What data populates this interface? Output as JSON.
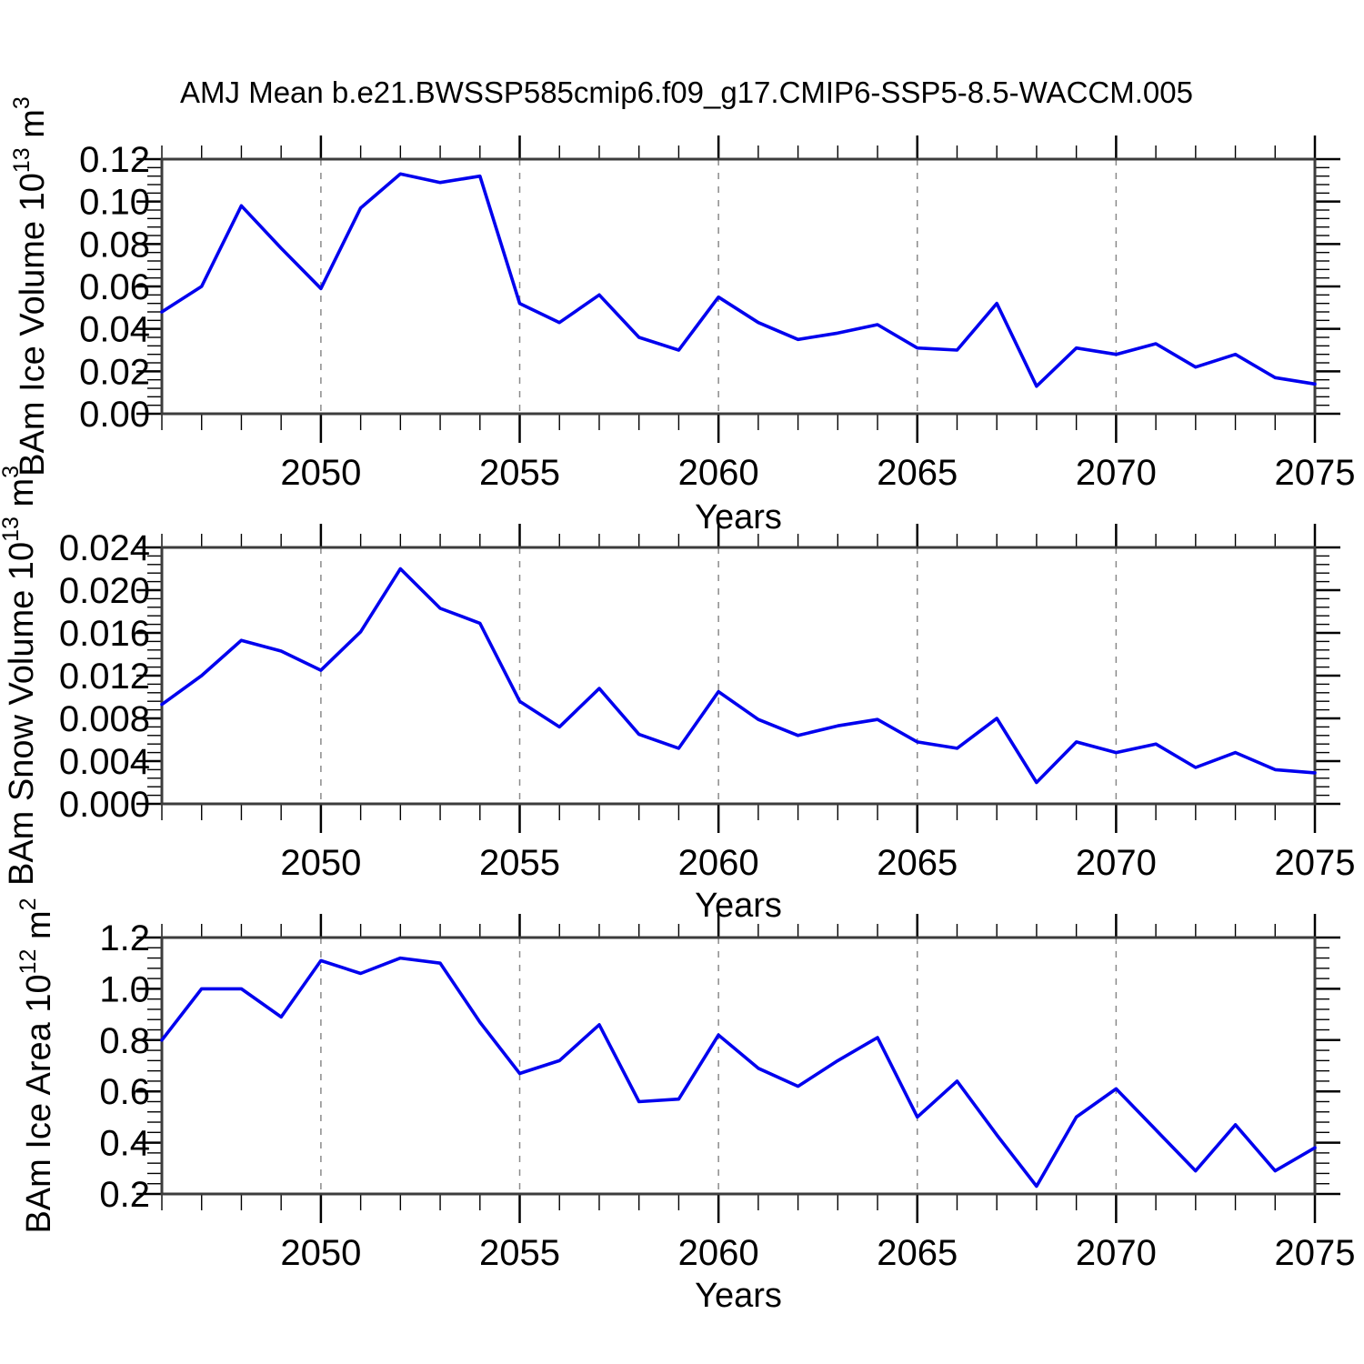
{
  "title": "AMJ Mean b.e21.BWSSP585cmip6.f09_g17.CMIP6-SSP5-8.5-WACCM.005",
  "colors": {
    "line": "#0000ee",
    "frame": "#3c3c3c",
    "tick": "#000000",
    "grid": "#8a8a8a",
    "text": "#000000",
    "background": "#ffffff"
  },
  "chart_data": [
    {
      "type": "line",
      "name": "bam-ice-volume",
      "ylabel_parts": {
        "prefix": "BAm Ice Volume 10",
        "exp": "13",
        "unit": " m",
        "unit_exp": "3"
      },
      "xlabel": "Years",
      "x": [
        2046,
        2047,
        2048,
        2049,
        2050,
        2051,
        2052,
        2053,
        2054,
        2055,
        2056,
        2057,
        2058,
        2059,
        2060,
        2061,
        2062,
        2063,
        2064,
        2065,
        2066,
        2067,
        2068,
        2069,
        2070,
        2071,
        2072,
        2073,
        2074,
        2075
      ],
      "values": [
        0.048,
        0.06,
        0.098,
        0.078,
        0.059,
        0.097,
        0.113,
        0.109,
        0.112,
        0.052,
        0.043,
        0.056,
        0.036,
        0.03,
        0.055,
        0.043,
        0.035,
        0.038,
        0.042,
        0.031,
        0.03,
        0.052,
        0.013,
        0.031,
        0.028,
        0.033,
        0.022,
        0.028,
        0.017,
        0.014
      ],
      "xlim": [
        2046,
        2075
      ],
      "ylim": [
        0.0,
        0.12
      ],
      "ytick_step": 0.02,
      "ytick_labels": [
        "0.00",
        "0.02",
        "0.04",
        "0.06",
        "0.08",
        "0.10",
        "0.12"
      ],
      "yminor_divisions": 5,
      "xtick_major": [
        2050,
        2055,
        2060,
        2065,
        2070,
        2075
      ],
      "xtick_labels": [
        "2050",
        "2055",
        "2060",
        "2065",
        "2070",
        "2075"
      ],
      "grid_x": [
        2050,
        2055,
        2060,
        2065,
        2070
      ],
      "grid_style": "vertical-dashed",
      "legend": "none"
    },
    {
      "type": "line",
      "name": "bam-snow-volume",
      "ylabel_parts": {
        "prefix": "BAm Snow Volume 10",
        "exp": "13",
        "unit": " m",
        "unit_exp": "3"
      },
      "xlabel": "Years",
      "x": [
        2046,
        2047,
        2048,
        2049,
        2050,
        2051,
        2052,
        2053,
        2054,
        2055,
        2056,
        2057,
        2058,
        2059,
        2060,
        2061,
        2062,
        2063,
        2064,
        2065,
        2066,
        2067,
        2068,
        2069,
        2070,
        2071,
        2072,
        2073,
        2074,
        2075
      ],
      "values": [
        0.0093,
        0.012,
        0.0153,
        0.0143,
        0.0125,
        0.0161,
        0.022,
        0.0183,
        0.0169,
        0.0096,
        0.0072,
        0.0108,
        0.0065,
        0.0052,
        0.0105,
        0.0079,
        0.0064,
        0.0073,
        0.0079,
        0.0058,
        0.0052,
        0.008,
        0.002,
        0.0058,
        0.0048,
        0.0056,
        0.0034,
        0.0048,
        0.0032,
        0.0029
      ],
      "xlim": [
        2046,
        2075
      ],
      "ylim": [
        0.0,
        0.024
      ],
      "ytick_step": 0.004,
      "ytick_labels": [
        "0.000",
        "0.004",
        "0.008",
        "0.012",
        "0.016",
        "0.020",
        "0.024"
      ],
      "yminor_divisions": 5,
      "xtick_major": [
        2050,
        2055,
        2060,
        2065,
        2070,
        2075
      ],
      "xtick_labels": [
        "2050",
        "2055",
        "2060",
        "2065",
        "2070",
        "2075"
      ],
      "grid_x": [
        2050,
        2055,
        2060,
        2065,
        2070
      ],
      "grid_style": "vertical-dashed",
      "legend": "none"
    },
    {
      "type": "line",
      "name": "bam-ice-area",
      "ylabel_parts": {
        "prefix": "BAm Ice Area 10",
        "exp": "12",
        "unit": " m",
        "unit_exp": "2"
      },
      "xlabel": "Years",
      "x": [
        2046,
        2047,
        2048,
        2049,
        2050,
        2051,
        2052,
        2053,
        2054,
        2055,
        2056,
        2057,
        2058,
        2059,
        2060,
        2061,
        2062,
        2063,
        2064,
        2065,
        2066,
        2067,
        2068,
        2069,
        2070,
        2071,
        2072,
        2073,
        2074,
        2075
      ],
      "values": [
        0.8,
        1.0,
        1.0,
        0.89,
        1.11,
        1.06,
        1.12,
        1.1,
        0.87,
        0.67,
        0.72,
        0.86,
        0.56,
        0.57,
        0.82,
        0.69,
        0.62,
        0.72,
        0.81,
        0.5,
        0.64,
        0.43,
        0.23,
        0.5,
        0.61,
        0.45,
        0.29,
        0.47,
        0.29,
        0.38
      ],
      "xlim": [
        2046,
        2075
      ],
      "ylim": [
        0.2,
        1.2
      ],
      "ytick_step": 0.2,
      "ytick_labels": [
        "0.2",
        "0.4",
        "0.6",
        "0.8",
        "1.0",
        "1.2"
      ],
      "yminor_divisions": 5,
      "xtick_major": [
        2050,
        2055,
        2060,
        2065,
        2070,
        2075
      ],
      "xtick_labels": [
        "2050",
        "2055",
        "2060",
        "2065",
        "2070",
        "2075"
      ],
      "grid_x": [
        2050,
        2055,
        2060,
        2065,
        2070
      ],
      "grid_style": "vertical-dashed",
      "legend": "none"
    }
  ]
}
